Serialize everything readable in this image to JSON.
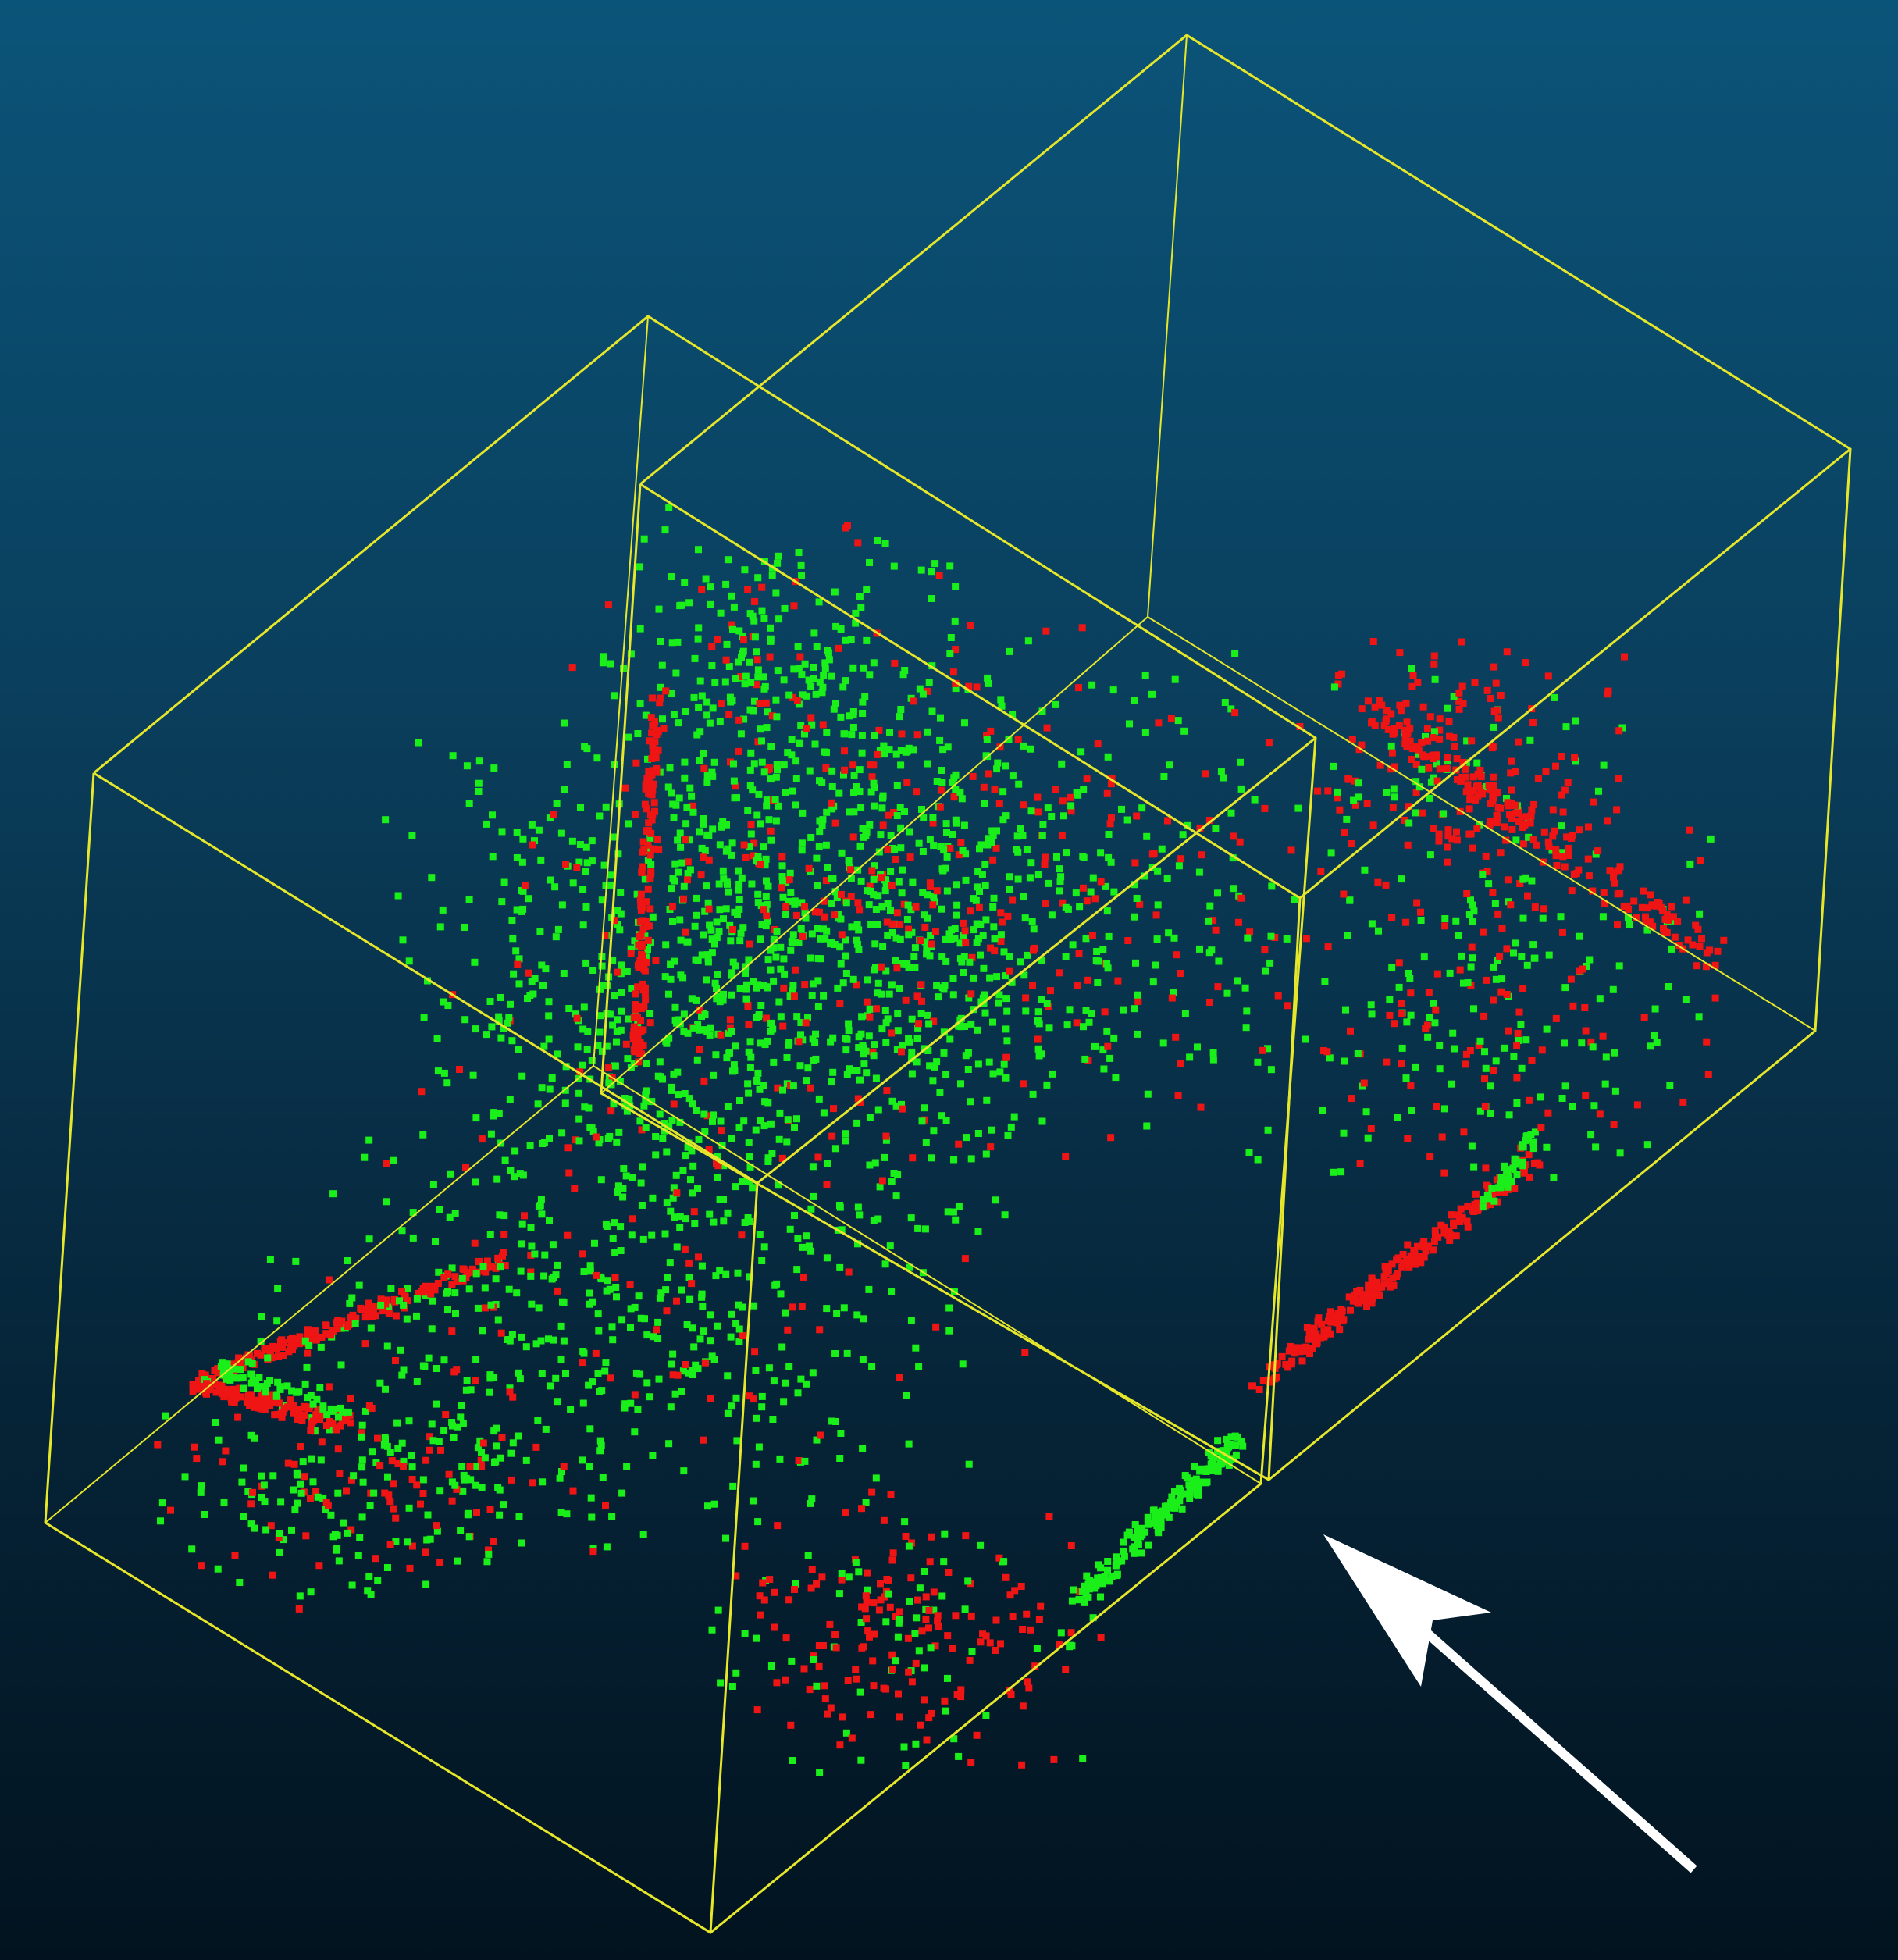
{
  "viewer": {
    "background_top": "#0b5479",
    "background_bottom": "#02131f"
  },
  "point_cloud": {
    "classes": [
      {
        "name": "green",
        "color": "#1aef1a"
      },
      {
        "name": "red",
        "color": "#ef1515"
      }
    ]
  },
  "bounding_boxes": {
    "color": "#e6e62a",
    "count": 2
  },
  "arrow": {
    "color": "#ffffff",
    "direction": "up-left"
  }
}
